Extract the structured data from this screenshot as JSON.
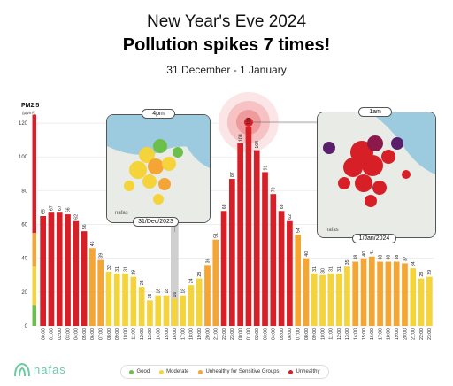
{
  "header": {
    "title": "New Year's Eve 2024",
    "headline": "Pollution spikes 7 times!",
    "date_range": "31 December - 1 January"
  },
  "colors": {
    "good": "#6cc04a",
    "moderate": "#f5d33a",
    "sensitive": "#f4a533",
    "unhealthy": "#d61f26",
    "grid": "#e3e3e3",
    "accent": "#d61f26"
  },
  "legend": [
    {
      "label": "Good",
      "color": "#6cc04a"
    },
    {
      "label": "Moderate",
      "color": "#f5d33a"
    },
    {
      "label": "Unhealthy for Sensitive Groups",
      "color": "#f4a533"
    },
    {
      "label": "Unhealthy",
      "color": "#d61f26"
    }
  ],
  "maps": {
    "left": {
      "time_label": "4pm",
      "date_label": "31/Dec/2023",
      "brand": "nafas"
    },
    "right": {
      "time_label": "1am",
      "date_label": "1/Jan/2024",
      "brand": "nafas"
    }
  },
  "brand": {
    "name": "nafas"
  },
  "chart_data": {
    "type": "bar",
    "ylabel": "PM2.5",
    "yunit": "(µg/m³)",
    "ylim": [
      0,
      130
    ],
    "yticks": [
      0,
      20,
      40,
      60,
      80,
      100,
      120
    ],
    "grid": true,
    "scale_bar": {
      "value": 125,
      "segments": [
        {
          "to": 12,
          "color": "#6cc04a"
        },
        {
          "to": 35,
          "color": "#f5d33a"
        },
        {
          "to": 55,
          "color": "#f4a533"
        },
        {
          "to": 125,
          "color": "#d61f26"
        }
      ]
    },
    "categories": [
      "00:00",
      "01:00",
      "02:00",
      "03:00",
      "04:00",
      "05:00",
      "06:00",
      "07:00",
      "08:00",
      "09:00",
      "10:00",
      "11:00",
      "12:00",
      "13:00",
      "14:00",
      "15:00",
      "16:00",
      "17:00",
      "18:00",
      "19:00",
      "20:00",
      "21:00",
      "22:00",
      "23:00",
      "00:00",
      "01:00",
      "02:00",
      "03:00",
      "04:00",
      "05:00",
      "06:00",
      "07:00",
      "08:00",
      "09:00",
      "10:00",
      "11:00",
      "12:00",
      "13:00",
      "14:00",
      "15:00",
      "16:00",
      "17:00",
      "18:00",
      "19:00",
      "20:00",
      "21:00",
      "22:00",
      "23:00"
    ],
    "values": [
      65,
      67,
      67,
      66,
      62,
      56,
      46,
      39,
      32,
      31,
      31,
      29,
      23,
      15,
      18,
      18,
      16,
      18,
      24,
      28,
      36,
      51,
      68,
      87,
      108,
      118,
      104,
      91,
      78,
      68,
      62,
      54,
      40,
      31,
      30,
      31,
      31,
      35,
      38,
      40,
      41,
      38,
      38,
      38,
      37,
      34,
      28,
      29
    ],
    "value_labels": [
      "65",
      "67",
      "67",
      "66",
      "62",
      "56",
      "46",
      "39",
      "32",
      "31",
      "31",
      "29",
      "23",
      "15",
      "18",
      "18",
      "16",
      "18",
      "24",
      "28",
      "36",
      "51",
      "68",
      "87",
      "108",
      "118",
      "104",
      "91",
      "78",
      "68",
      "62",
      "54",
      "40",
      "31",
      "30",
      "31",
      "31",
      "35",
      "38",
      "40",
      "41",
      "38",
      "38",
      "38",
      "37",
      "34",
      "28",
      "29"
    ]
  }
}
